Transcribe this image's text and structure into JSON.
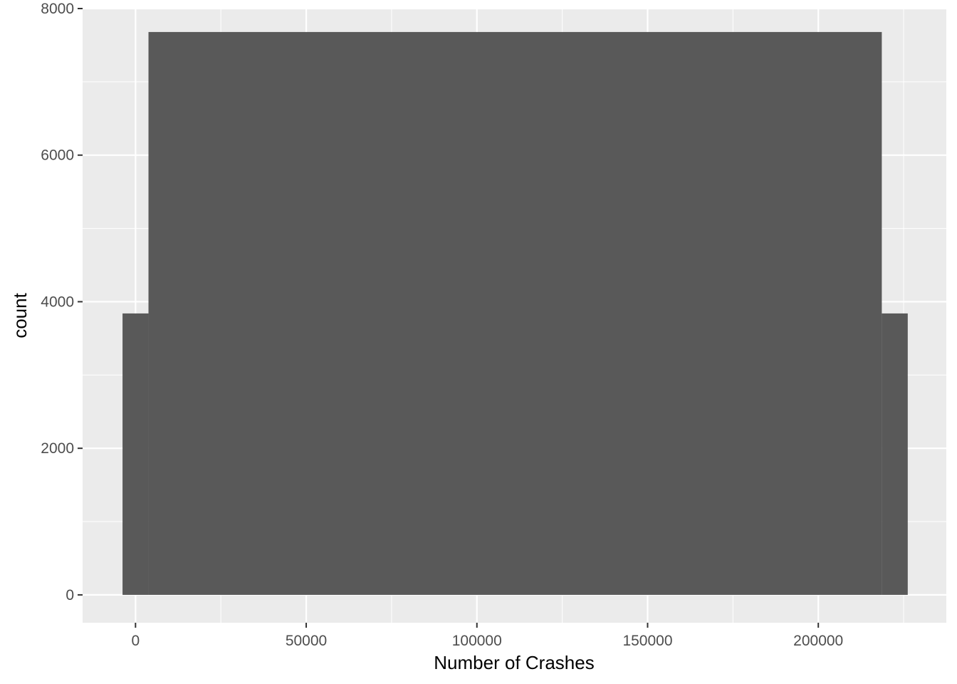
{
  "chart_data": {
    "type": "bar",
    "title": "",
    "xlabel": "Number of Crashes",
    "ylabel": "count",
    "xlim": [
      -15500,
      237500
    ],
    "ylim": [
      -380,
      8000
    ],
    "x_ticks": [
      0,
      50000,
      100000,
      150000,
      200000
    ],
    "x_minor_ticks": [
      25000,
      75000,
      125000,
      175000,
      225000
    ],
    "y_ticks": [
      0,
      2000,
      4000,
      6000,
      8000
    ],
    "y_minor_ticks": [
      1000,
      3000,
      5000,
      7000
    ],
    "grid": true,
    "bins": [
      {
        "x0": -3800,
        "x1": 3800,
        "count": 3840
      },
      {
        "x0": 3800,
        "x1": 218600,
        "count": 7680
      },
      {
        "x0": 218600,
        "x1": 226200,
        "count": 3840
      }
    ],
    "colors": {
      "panel": "#ebebeb",
      "grid": "#ffffff",
      "bar": "#595959",
      "tick": "#333333"
    }
  }
}
